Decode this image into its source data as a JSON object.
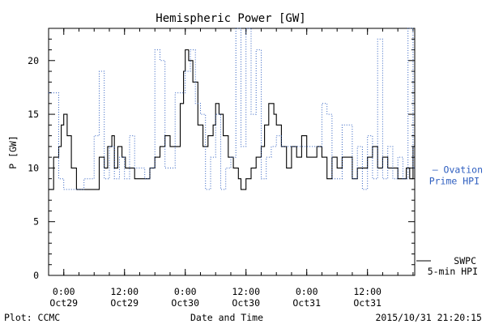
{
  "chart_data": {
    "type": "line",
    "title": "Hemispheric Power [GW]",
    "ylabel": "P [GW]",
    "xlabel": "Date and Time",
    "ylim": [
      0,
      23
    ],
    "yticks": [
      0,
      5,
      10,
      15,
      20
    ],
    "xlim": [
      "2015-10-28T21:00",
      "2015-10-31T21:20"
    ],
    "xticks": [
      {
        "time": "2015-10-29T00:00",
        "label1": "0:00",
        "label2": "Oct29"
      },
      {
        "time": "2015-10-29T12:00",
        "label1": "12:00",
        "label2": "Oct29"
      },
      {
        "time": "2015-10-30T00:00",
        "label1": "0:00",
        "label2": "Oct30"
      },
      {
        "time": "2015-10-30T12:00",
        "label1": "12:00",
        "label2": "Oct30"
      },
      {
        "time": "2015-10-31T00:00",
        "label1": "0:00",
        "label2": "Oct31"
      },
      {
        "time": "2015-10-31T12:00",
        "label1": "12:00",
        "label2": "Oct31"
      }
    ],
    "grid": false,
    "legend_position": "right",
    "series": [
      {
        "name": "SWPC 5-min HPI",
        "label_lines": [
          "SWPC",
          "5-min HPI"
        ],
        "color": "#000000",
        "style": "solid-step",
        "x": [
          "2015-10-28T21:00",
          "2015-10-28T22:00",
          "2015-10-28T23:00",
          "2015-10-28T23:30",
          "2015-10-29T00:00",
          "2015-10-29T00:40",
          "2015-10-29T01:30",
          "2015-10-29T02:30",
          "2015-10-29T04:00",
          "2015-10-29T05:00",
          "2015-10-29T06:00",
          "2015-10-29T07:00",
          "2015-10-29T08:00",
          "2015-10-29T08:40",
          "2015-10-29T09:30",
          "2015-10-29T10:00",
          "2015-10-29T10:40",
          "2015-10-29T11:30",
          "2015-10-29T12:10",
          "2015-10-29T13:00",
          "2015-10-29T14:00",
          "2015-10-29T15:00",
          "2015-10-29T16:00",
          "2015-10-29T17:00",
          "2015-10-29T18:00",
          "2015-10-29T19:00",
          "2015-10-29T20:00",
          "2015-10-29T21:00",
          "2015-10-29T22:00",
          "2015-10-29T23:00",
          "2015-10-29T23:40",
          "2015-10-30T00:00",
          "2015-10-30T00:40",
          "2015-10-30T01:30",
          "2015-10-30T02:30",
          "2015-10-30T03:30",
          "2015-10-30T04:30",
          "2015-10-30T05:30",
          "2015-10-30T06:00",
          "2015-10-30T06:40",
          "2015-10-30T07:30",
          "2015-10-30T08:30",
          "2015-10-30T09:30",
          "2015-10-30T10:30",
          "2015-10-30T11:00",
          "2015-10-30T12:00",
          "2015-10-30T13:00",
          "2015-10-30T14:00",
          "2015-10-30T15:00",
          "2015-10-30T15:40",
          "2015-10-30T16:30",
          "2015-10-30T17:30",
          "2015-10-30T18:00",
          "2015-10-30T19:00",
          "2015-10-30T20:00",
          "2015-10-30T21:00",
          "2015-10-30T22:00",
          "2015-10-30T23:00",
          "2015-10-31T00:00",
          "2015-10-31T01:00",
          "2015-10-31T02:00",
          "2015-10-31T03:00",
          "2015-10-31T04:00",
          "2015-10-31T05:00",
          "2015-10-31T06:00",
          "2015-10-31T07:00",
          "2015-10-31T08:00",
          "2015-10-31T09:00",
          "2015-10-31T10:00",
          "2015-10-31T11:00",
          "2015-10-31T12:00",
          "2015-10-31T13:00",
          "2015-10-31T14:00",
          "2015-10-31T15:00",
          "2015-10-31T16:00",
          "2015-10-31T17:00",
          "2015-10-31T18:00",
          "2015-10-31T19:00",
          "2015-10-31T19:40",
          "2015-10-31T20:20",
          "2015-10-31T21:00",
          "2015-10-31T21:20"
        ],
        "y": [
          8,
          11,
          12,
          14,
          15,
          13,
          10,
          8,
          8,
          8,
          8,
          11,
          10,
          12,
          13,
          10,
          12,
          11,
          10,
          10,
          9,
          9,
          9,
          10,
          11,
          12,
          13,
          12,
          12,
          16,
          19,
          21,
          20,
          18,
          14,
          12,
          13,
          14,
          16,
          15,
          13,
          11,
          10,
          9,
          8,
          9,
          10,
          11,
          12,
          14,
          16,
          15,
          14,
          12,
          10,
          12,
          11,
          13,
          11,
          11,
          12,
          11,
          9,
          11,
          10,
          11,
          11,
          9,
          10,
          10,
          11,
          12,
          10,
          11,
          10,
          10,
          9,
          9,
          10,
          9,
          12,
          13
        ]
      },
      {
        "name": "Ovation Prime HPI",
        "label_lines": [
          "— Ovation",
          "Prime HPI"
        ],
        "color": "#2f5fc0",
        "style": "dotted-step",
        "x": [
          "2015-10-28T21:00",
          "2015-10-28T23:00",
          "2015-10-29T00:00",
          "2015-10-29T01:00",
          "2015-10-29T03:00",
          "2015-10-29T04:00",
          "2015-10-29T06:00",
          "2015-10-29T07:00",
          "2015-10-29T08:00",
          "2015-10-29T09:00",
          "2015-10-29T10:00",
          "2015-10-29T11:00",
          "2015-10-29T12:00",
          "2015-10-29T13:00",
          "2015-10-29T14:00",
          "2015-10-29T16:00",
          "2015-10-29T17:00",
          "2015-10-29T18:00",
          "2015-10-29T19:00",
          "2015-10-29T20:00",
          "2015-10-29T21:00",
          "2015-10-29T22:00",
          "2015-10-30T00:00",
          "2015-10-30T01:00",
          "2015-10-30T02:00",
          "2015-10-30T03:00",
          "2015-10-30T04:00",
          "2015-10-30T05:00",
          "2015-10-30T06:00",
          "2015-10-30T07:00",
          "2015-10-30T08:00",
          "2015-10-30T09:00",
          "2015-10-30T10:00",
          "2015-10-30T11:00",
          "2015-10-30T12:00",
          "2015-10-30T13:00",
          "2015-10-30T14:00",
          "2015-10-30T15:00",
          "2015-10-30T16:00",
          "2015-10-30T17:00",
          "2015-10-30T18:00",
          "2015-10-30T19:00",
          "2015-10-30T20:00",
          "2015-10-30T21:00",
          "2015-10-30T22:00",
          "2015-10-30T23:00",
          "2015-10-31T01:00",
          "2015-10-31T03:00",
          "2015-10-31T04:00",
          "2015-10-31T05:00",
          "2015-10-31T06:00",
          "2015-10-31T07:00",
          "2015-10-31T09:00",
          "2015-10-31T10:00",
          "2015-10-31T11:00",
          "2015-10-31T12:00",
          "2015-10-31T13:00",
          "2015-10-31T14:00",
          "2015-10-31T15:00",
          "2015-10-31T16:00",
          "2015-10-31T17:00",
          "2015-10-31T18:00",
          "2015-10-31T19:00",
          "2015-10-31T20:00",
          "2015-10-31T21:00"
        ],
        "y": [
          17,
          9,
          8,
          8,
          8,
          9,
          13,
          19,
          9,
          12,
          9,
          11,
          9,
          13,
          10,
          9,
          10,
          21,
          20,
          10,
          10,
          17,
          19,
          21,
          16,
          15,
          8,
          11,
          15,
          8,
          10,
          11,
          23,
          12,
          23,
          15,
          21,
          9,
          11,
          12,
          13,
          12,
          12,
          12,
          12,
          12,
          12,
          16,
          15,
          9,
          9,
          14,
          9,
          12,
          8,
          13,
          9,
          22,
          9,
          12,
          9,
          11,
          9,
          23,
          10
        ]
      }
    ]
  },
  "footer": {
    "left": "Plot: CCMC",
    "center": "Date and Time",
    "right": "2015/10/31 21:20:15"
  }
}
